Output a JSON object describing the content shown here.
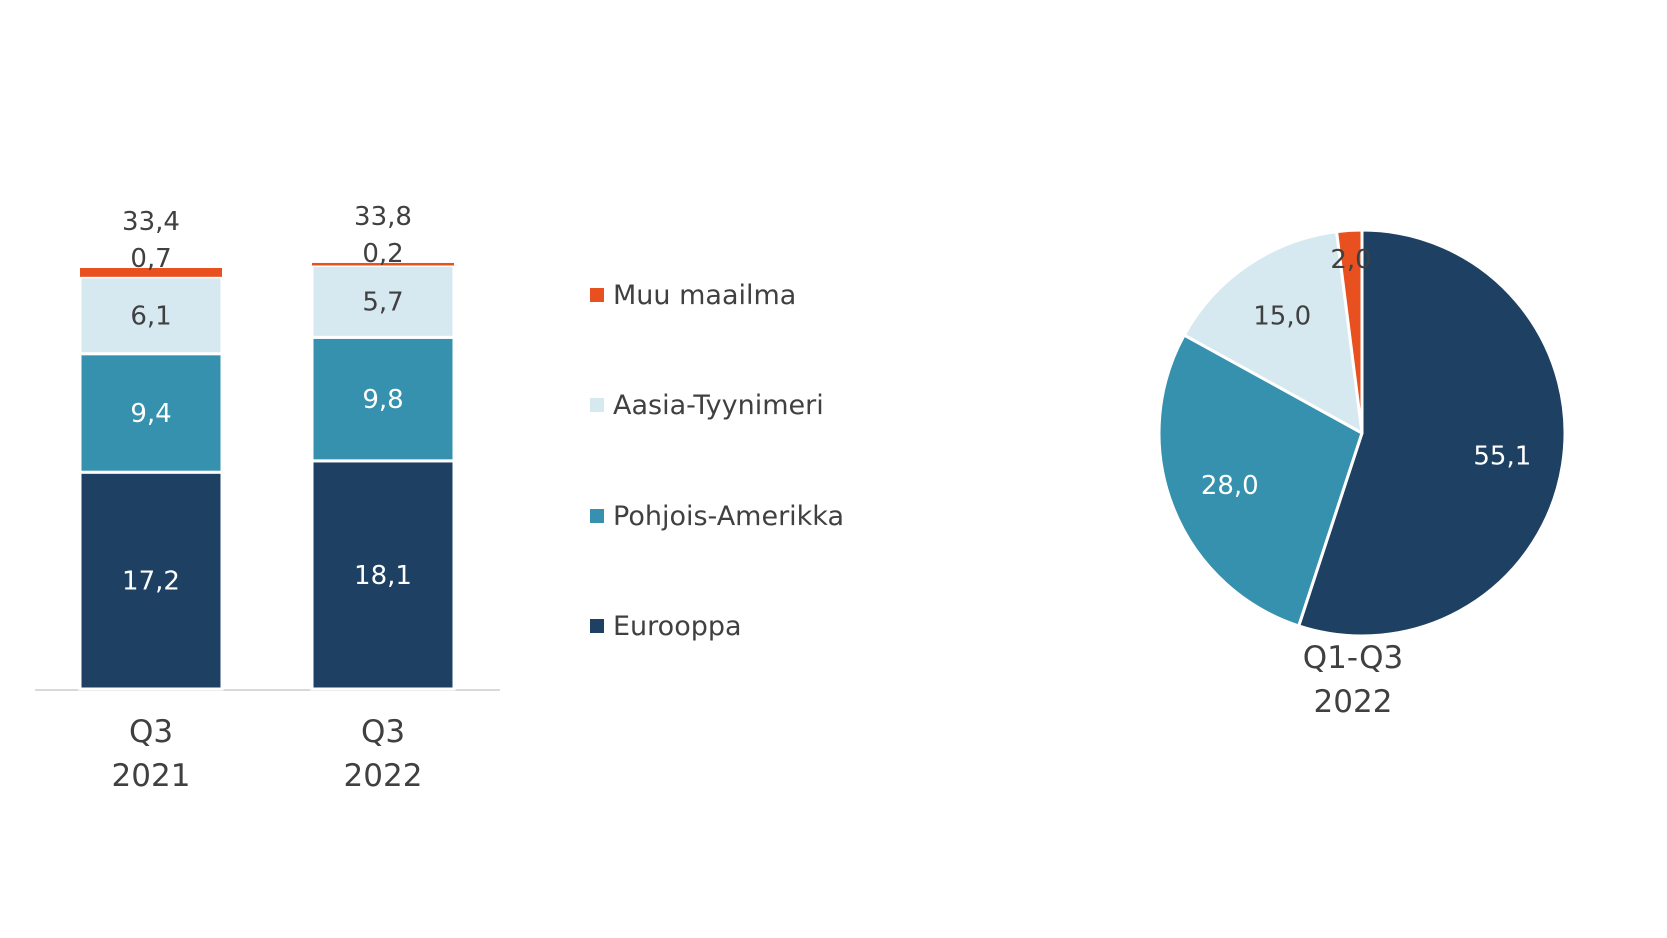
{
  "colors": {
    "Eurooppa": "#1e4163",
    "Pohjois-Amerikka": "#3591ad",
    "Aasia-Tyynimeri": "#d7e9f0",
    "Muu maailma": "#e8511f",
    "axis": "#d9d9d9",
    "text_dark": "#404040",
    "text_light": "#ffffff"
  },
  "chart_data": [
    {
      "type": "bar",
      "stacked": true,
      "categories": [
        [
          "Q3",
          "2021"
        ],
        [
          "Q3",
          "2022"
        ]
      ],
      "series": [
        {
          "name": "Eurooppa",
          "values": [
            17.2,
            18.1
          ],
          "labels": [
            "17,2",
            "18,1"
          ]
        },
        {
          "name": "Pohjois-Amerikka",
          "values": [
            9.4,
            9.8
          ],
          "labels": [
            "9,4",
            "9,8"
          ]
        },
        {
          "name": "Aasia-Tyynimeri",
          "values": [
            6.1,
            5.7
          ],
          "labels": [
            "6,1",
            "5,7"
          ]
        },
        {
          "name": "Muu maailma",
          "values": [
            0.7,
            0.2
          ],
          "labels": [
            "0,7",
            "0,2"
          ]
        }
      ],
      "totals": [
        33.4,
        33.8
      ],
      "total_labels": [
        "33,4",
        "33,8"
      ],
      "ylim": [
        0,
        34
      ],
      "grid": false
    },
    {
      "type": "pie",
      "category": [
        "Q1-Q3",
        "2022"
      ],
      "slices": [
        {
          "name": "Eurooppa",
          "value": 55.1,
          "label": "55,1"
        },
        {
          "name": "Pohjois-Amerikka",
          "value": 28.0,
          "label": "28,0"
        },
        {
          "name": "Aasia-Tyynimeri",
          "value": 15.0,
          "label": "15,0"
        },
        {
          "name": "Muu maailma",
          "value": 2.0,
          "label": "2,0"
        }
      ]
    }
  ],
  "legend": {
    "placement": "center",
    "items": [
      "Muu maailma",
      "Aasia-Tyynimeri",
      "Pohjois-Amerikka",
      "Eurooppa"
    ]
  }
}
